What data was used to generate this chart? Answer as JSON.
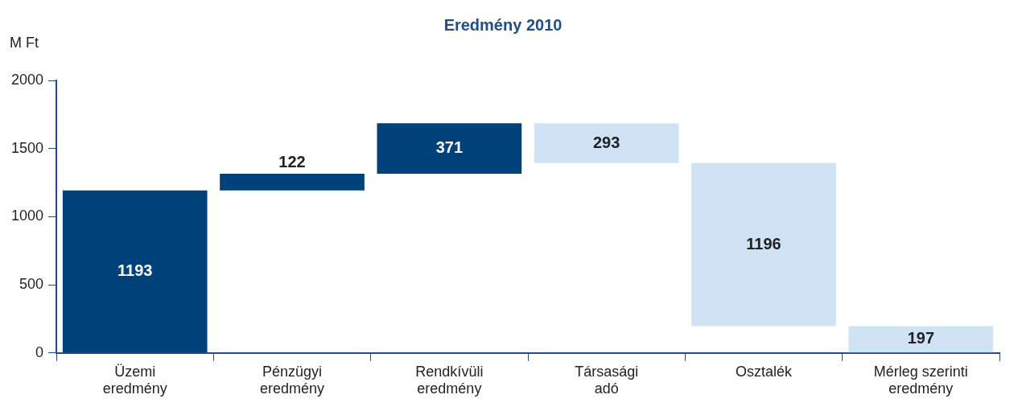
{
  "chart_data": {
    "type": "bar",
    "title": "Eredmény 2010",
    "ylabel": "M Ft",
    "categories": [
      "Üzemi eredmény",
      "Pénzügyi eredmény",
      "Rendkívüli eredmény",
      "Társasági adó",
      "Osztalék",
      "Mérleg szerinti eredmény"
    ],
    "values": [
      1193,
      122,
      371,
      -293,
      -1196,
      197
    ],
    "base": [
      0,
      1193,
      1315,
      1686,
      1393,
      0
    ],
    "colors": [
      "#00427a",
      "#00427a",
      "#00427a",
      "#cfe3f5",
      "#cfe3f5",
      "#cfe3f5"
    ],
    "value_labels": [
      "1193",
      "122",
      "371",
      "293",
      "1196",
      "197"
    ],
    "ylim": [
      0,
      2000
    ],
    "yticks": [
      0,
      500,
      1000,
      1500,
      2000
    ],
    "grid": false,
    "legend": false
  }
}
